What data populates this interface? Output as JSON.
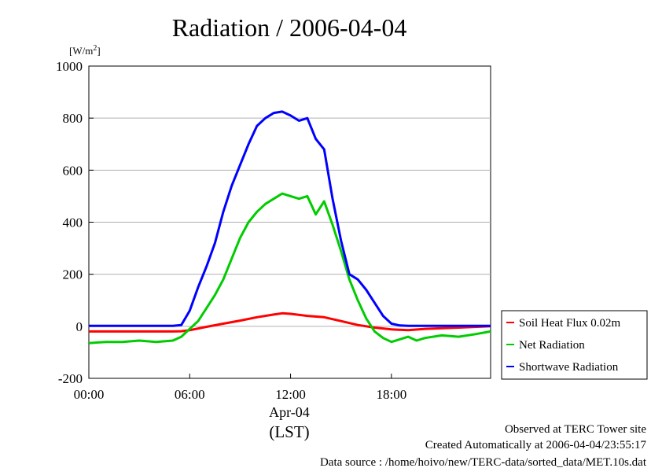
{
  "chart_data": {
    "type": "line",
    "title": "Radiation / 2006-04-04",
    "ylabel_unit": "[W/m",
    "ylabel_sup": "2",
    "ylabel_close": "]",
    "ylim": [
      -200,
      1000
    ],
    "y_ticks": [
      1000,
      800,
      600,
      400,
      200,
      0,
      -200
    ],
    "xlim": [
      0,
      23.9
    ],
    "x_ticks": [
      0,
      6,
      12,
      18
    ],
    "x_tick_labels": [
      "00:00",
      "06:00",
      "12:00",
      "18:00"
    ],
    "date_label": "Apr-04",
    "xlabel": "(LST)",
    "grid": true,
    "legend_position": "right",
    "series": [
      {
        "name": "Soil Heat Flux 0.02m",
        "color": "#ff0000",
        "x": [
          0,
          2,
          4,
          5,
          5.5,
          6,
          7,
          8,
          9,
          10,
          11,
          11.5,
          12,
          13,
          14,
          15,
          16,
          17,
          18,
          19,
          20,
          22,
          23.9
        ],
        "y": [
          -20,
          -20,
          -20,
          -20,
          -19,
          -15,
          -2,
          10,
          22,
          35,
          45,
          50,
          48,
          40,
          35,
          20,
          5,
          -5,
          -12,
          -15,
          -10,
          -5,
          0
        ]
      },
      {
        "name": "Net Radiation",
        "color": "#00cc00",
        "x": [
          0,
          1,
          2,
          3,
          4,
          5,
          5.5,
          6,
          6.5,
          7,
          7.5,
          8,
          8.5,
          9,
          9.5,
          10,
          10.5,
          11,
          11.5,
          12,
          12.5,
          13,
          13.5,
          14,
          14.5,
          15,
          15.5,
          16,
          16.5,
          17,
          17.5,
          18,
          18.5,
          19,
          19.5,
          20,
          21,
          22,
          23,
          23.9
        ],
        "y": [
          -65,
          -60,
          -60,
          -55,
          -60,
          -55,
          -40,
          -10,
          20,
          70,
          120,
          180,
          260,
          340,
          400,
          440,
          470,
          490,
          510,
          500,
          490,
          500,
          430,
          480,
          390,
          290,
          180,
          100,
          30,
          -20,
          -45,
          -60,
          -50,
          -40,
          -55,
          -45,
          -35,
          -40,
          -30,
          -20
        ]
      },
      {
        "name": "Shortwave Radiation",
        "color": "#0000ff",
        "x": [
          0,
          1,
          2,
          3,
          4,
          5,
          5.5,
          6,
          6.5,
          7,
          7.5,
          8,
          8.5,
          9,
          9.5,
          10,
          10.5,
          11,
          11.5,
          12,
          12.5,
          13,
          13.5,
          14,
          14.5,
          15,
          15.5,
          16,
          16.5,
          17,
          17.5,
          18,
          18.5,
          19,
          20,
          22,
          23.9
        ],
        "y": [
          2,
          2,
          2,
          2,
          2,
          2,
          5,
          60,
          150,
          230,
          320,
          440,
          540,
          620,
          700,
          770,
          800,
          820,
          825,
          810,
          790,
          800,
          720,
          680,
          490,
          330,
          200,
          180,
          140,
          90,
          40,
          10,
          3,
          2,
          2,
          2,
          2
        ]
      }
    ]
  },
  "footer": {
    "line1": "Observed at TERC Tower site",
    "line2": "Created Automatically at 2006-04-04/23:55:17",
    "line3": "Data source : /home/hoivo/new/TERC-data/sorted_data/MET.10s.dat"
  }
}
